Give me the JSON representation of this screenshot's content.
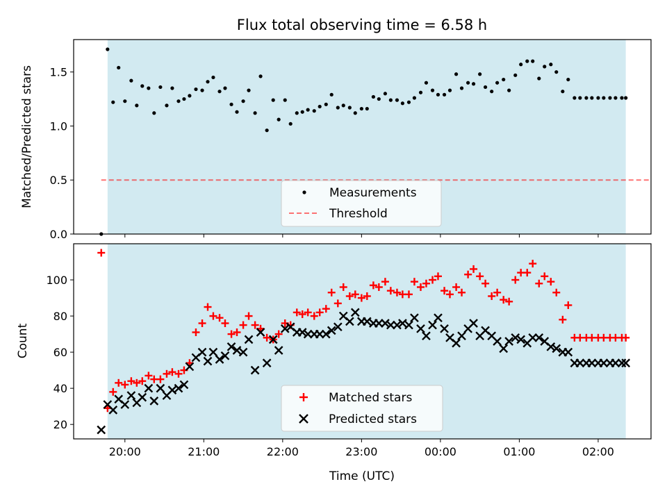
{
  "title": "Flux total observing time = 6.58 h",
  "colors": {
    "band": "#add8e6",
    "threshold": "#ff0000",
    "matched": "#ff0000",
    "predicted": "#000000",
    "measurements": "#000000"
  },
  "chart_data": [
    {
      "type": "scatter",
      "ylabel": "Matched/Predicted stars",
      "ylim": [
        0,
        1.8
      ],
      "xlim": [
        -0.65,
        6.67
      ],
      "yticks": [
        0.0,
        0.5,
        1.0,
        1.5
      ],
      "ytick_labels": [
        "0.0",
        "0.5",
        "1.0",
        "1.5"
      ],
      "shaded_x_range": [
        -0.22,
        6.35
      ],
      "legend": [
        "Measurements",
        "Threshold"
      ],
      "legend_position": "lower-center",
      "threshold": {
        "name": "Threshold",
        "y": 0.5,
        "x": [
          -0.3,
          6.67
        ]
      },
      "series": [
        {
          "name": "Measurements",
          "x": [
            -0.3,
            -0.22,
            -0.15,
            -0.08,
            0.0,
            0.08,
            0.15,
            0.22,
            0.3,
            0.37,
            0.45,
            0.53,
            0.6,
            0.68,
            0.75,
            0.82,
            0.9,
            0.98,
            1.05,
            1.12,
            1.2,
            1.27,
            1.35,
            1.42,
            1.5,
            1.57,
            1.65,
            1.72,
            1.8,
            1.88,
            1.95,
            2.03,
            2.1,
            2.18,
            2.25,
            2.32,
            2.4,
            2.47,
            2.55,
            2.62,
            2.7,
            2.77,
            2.85,
            2.92,
            3.0,
            3.07,
            3.15,
            3.22,
            3.3,
            3.37,
            3.45,
            3.52,
            3.6,
            3.67,
            3.75,
            3.82,
            3.9,
            3.97,
            4.05,
            4.12,
            4.2,
            4.27,
            4.35,
            4.42,
            4.5,
            4.57,
            4.65,
            4.72,
            4.8,
            4.87,
            4.95,
            5.02,
            5.1,
            5.17,
            5.25,
            5.32,
            5.4,
            5.47,
            5.55,
            5.62,
            5.7,
            5.77,
            5.85,
            5.92,
            6.0,
            6.07,
            6.15,
            6.22,
            6.3,
            6.35
          ],
          "y": [
            0.0,
            1.71,
            1.22,
            1.54,
            1.23,
            1.42,
            1.19,
            1.37,
            1.35,
            1.12,
            1.36,
            1.19,
            1.35,
            1.23,
            1.25,
            1.28,
            1.34,
            1.33,
            1.41,
            1.45,
            1.32,
            1.35,
            1.2,
            1.13,
            1.23,
            1.33,
            1.12,
            1.46,
            0.96,
            1.24,
            1.06,
            1.24,
            1.02,
            1.12,
            1.13,
            1.15,
            1.14,
            1.18,
            1.2,
            1.29,
            1.17,
            1.19,
            1.17,
            1.12,
            1.16,
            1.16,
            1.27,
            1.25,
            1.3,
            1.24,
            1.24,
            1.21,
            1.22,
            1.26,
            1.31,
            1.4,
            1.33,
            1.29,
            1.29,
            1.33,
            1.48,
            1.35,
            1.4,
            1.39,
            1.48,
            1.36,
            1.32,
            1.4,
            1.43,
            1.33,
            1.47,
            1.57,
            1.6,
            1.6,
            1.44,
            1.55,
            1.57,
            1.5,
            1.32,
            1.43,
            1.26,
            1.26,
            1.26,
            1.26,
            1.26,
            1.26,
            1.26,
            1.26,
            1.26,
            1.26
          ]
        }
      ]
    },
    {
      "type": "scatter",
      "ylabel": "Count",
      "xlabel": "Time (UTC)",
      "ylim": [
        12,
        120
      ],
      "xlim": [
        -0.65,
        6.67
      ],
      "yticks": [
        20,
        40,
        60,
        80,
        100
      ],
      "ytick_labels": [
        "20",
        "40",
        "60",
        "80",
        "100"
      ],
      "xticks": [
        0,
        1,
        2,
        3,
        4,
        5,
        6
      ],
      "xtick_labels": [
        "20:00",
        "21:00",
        "22:00",
        "23:00",
        "00:00",
        "01:00",
        "02:00"
      ],
      "shaded_x_range": [
        -0.22,
        6.35
      ],
      "legend": [
        "Matched stars",
        "Predicted stars"
      ],
      "legend_position": "lower-center",
      "series": [
        {
          "name": "Matched stars",
          "x": [
            -0.3,
            -0.22,
            -0.15,
            -0.08,
            0.0,
            0.08,
            0.15,
            0.22,
            0.3,
            0.37,
            0.45,
            0.53,
            0.6,
            0.68,
            0.75,
            0.82,
            0.9,
            0.98,
            1.05,
            1.12,
            1.2,
            1.27,
            1.35,
            1.42,
            1.5,
            1.57,
            1.65,
            1.72,
            1.8,
            1.88,
            1.95,
            2.03,
            2.1,
            2.18,
            2.25,
            2.32,
            2.4,
            2.47,
            2.55,
            2.62,
            2.7,
            2.77,
            2.85,
            2.92,
            3.0,
            3.07,
            3.15,
            3.22,
            3.3,
            3.37,
            3.45,
            3.52,
            3.6,
            3.67,
            3.75,
            3.82,
            3.9,
            3.97,
            4.05,
            4.12,
            4.2,
            4.27,
            4.35,
            4.42,
            4.5,
            4.57,
            4.65,
            4.72,
            4.8,
            4.87,
            4.95,
            5.02,
            5.1,
            5.17,
            5.25,
            5.32,
            5.4,
            5.47,
            5.55,
            5.62,
            5.7,
            5.77,
            5.85,
            5.92,
            6.0,
            6.07,
            6.15,
            6.22,
            6.3,
            6.35
          ],
          "y": [
            115,
            29,
            38,
            43,
            42,
            44,
            43,
            44,
            47,
            45,
            45,
            48,
            49,
            48,
            50,
            54,
            71,
            76,
            85,
            80,
            79,
            76,
            70,
            71,
            75,
            80,
            75,
            73,
            68,
            67,
            70,
            76,
            75,
            82,
            81,
            82,
            80,
            82,
            84,
            93,
            87,
            96,
            91,
            92,
            90,
            91,
            97,
            96,
            99,
            94,
            93,
            92,
            92,
            99,
            96,
            98,
            100,
            102,
            94,
            92,
            96,
            93,
            103,
            106,
            102,
            98,
            91,
            93,
            89,
            88,
            100,
            104,
            104,
            109,
            98,
            102,
            99,
            93,
            78,
            86,
            68,
            68,
            68,
            68,
            68,
            68,
            68,
            68,
            68,
            68
          ]
        },
        {
          "name": "Predicted stars",
          "x": [
            -0.3,
            -0.22,
            -0.15,
            -0.08,
            0.0,
            0.08,
            0.15,
            0.22,
            0.3,
            0.37,
            0.45,
            0.53,
            0.6,
            0.68,
            0.75,
            0.82,
            0.9,
            0.98,
            1.05,
            1.12,
            1.2,
            1.27,
            1.35,
            1.42,
            1.5,
            1.57,
            1.65,
            1.72,
            1.8,
            1.88,
            1.95,
            2.03,
            2.1,
            2.18,
            2.25,
            2.32,
            2.4,
            2.47,
            2.55,
            2.62,
            2.7,
            2.77,
            2.85,
            2.92,
            3.0,
            3.07,
            3.15,
            3.22,
            3.3,
            3.37,
            3.45,
            3.52,
            3.6,
            3.67,
            3.75,
            3.82,
            3.9,
            3.97,
            4.05,
            4.12,
            4.2,
            4.27,
            4.35,
            4.42,
            4.5,
            4.57,
            4.65,
            4.72,
            4.8,
            4.87,
            4.95,
            5.02,
            5.1,
            5.17,
            5.25,
            5.32,
            5.4,
            5.47,
            5.55,
            5.62,
            5.7,
            5.77,
            5.85,
            5.92,
            6.0,
            6.07,
            6.15,
            6.22,
            6.3,
            6.35
          ],
          "y": [
            17,
            31,
            28,
            34,
            31,
            36,
            32,
            35,
            40,
            33,
            40,
            36,
            39,
            40,
            42,
            52,
            57,
            60,
            55,
            60,
            56,
            58,
            63,
            61,
            60,
            67,
            50,
            71,
            54,
            67,
            61,
            73,
            74,
            71,
            71,
            70,
            70,
            70,
            70,
            72,
            74,
            80,
            77,
            82,
            77,
            77,
            76,
            76,
            76,
            75,
            75,
            76,
            75,
            79,
            73,
            69,
            75,
            79,
            73,
            68,
            65,
            69,
            73,
            76,
            69,
            72,
            69,
            66,
            62,
            66,
            68,
            67,
            65,
            68,
            68,
            66,
            63,
            62,
            60,
            60,
            54,
            54,
            54,
            54,
            54,
            54,
            54,
            54,
            54,
            54
          ]
        }
      ]
    }
  ]
}
